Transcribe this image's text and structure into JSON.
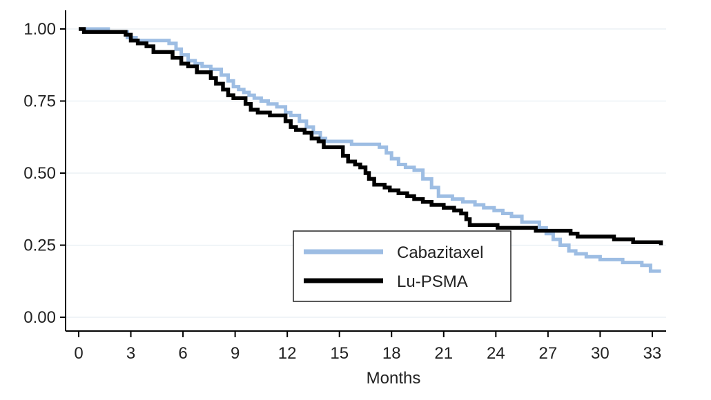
{
  "chart_data": {
    "type": "line",
    "step": true,
    "title": "",
    "xlabel": "Months",
    "ylabel": "",
    "xlim": [
      0,
      33.5
    ],
    "ylim": [
      0,
      1
    ],
    "xticks": [
      "0",
      "3",
      "6",
      "9",
      "12",
      "15",
      "18",
      "21",
      "24",
      "27",
      "30",
      "33"
    ],
    "yticks": [
      "0.00",
      "0.25",
      "0.50",
      "0.75",
      "1.00"
    ],
    "grid": true,
    "legend_position": "lower-center",
    "series": [
      {
        "name": "Cabazitaxel",
        "color": "#9dbde3",
        "x": [
          0,
          1,
          1.7,
          2.8,
          3.3,
          5.2,
          5.6,
          5.9,
          6.3,
          6.7,
          7.1,
          7.6,
          8.2,
          8.6,
          8.9,
          9.2,
          9.5,
          9.8,
          10.1,
          10.5,
          10.9,
          11.4,
          11.9,
          12.2,
          12.7,
          13.1,
          13.5,
          13.9,
          14.2,
          14.8,
          15.7,
          16.5,
          17.3,
          17.7,
          18.0,
          18.4,
          18.8,
          19.3,
          19.8,
          20.3,
          20.7,
          21.5,
          22.1,
          22.8,
          23.3,
          23.9,
          24.4,
          24.9,
          25.5,
          26.5,
          26.9,
          27.3,
          27.7,
          28.2,
          28.6,
          29.2,
          30.0,
          31.3,
          32.4,
          32.9,
          33.5
        ],
        "y": [
          1.0,
          1.0,
          0.99,
          0.97,
          0.96,
          0.95,
          0.93,
          0.91,
          0.89,
          0.88,
          0.87,
          0.86,
          0.84,
          0.82,
          0.8,
          0.79,
          0.78,
          0.77,
          0.76,
          0.75,
          0.74,
          0.73,
          0.71,
          0.7,
          0.68,
          0.66,
          0.64,
          0.62,
          0.61,
          0.61,
          0.6,
          0.6,
          0.59,
          0.57,
          0.55,
          0.53,
          0.52,
          0.51,
          0.48,
          0.45,
          0.42,
          0.41,
          0.4,
          0.39,
          0.38,
          0.37,
          0.36,
          0.35,
          0.33,
          0.31,
          0.29,
          0.27,
          0.25,
          0.23,
          0.22,
          0.21,
          0.2,
          0.19,
          0.18,
          0.16,
          0.16
        ]
      },
      {
        "name": "Lu-PSMA",
        "color": "#000000",
        "x": [
          0,
          0.3,
          2.7,
          3.0,
          3.4,
          3.9,
          4.3,
          5.4,
          5.9,
          6.3,
          6.8,
          7.6,
          7.9,
          8.3,
          8.6,
          8.9,
          9.6,
          9.9,
          10.3,
          11.0,
          11.9,
          12.2,
          12.5,
          13.0,
          13.4,
          13.8,
          14.1,
          15.2,
          15.5,
          15.9,
          16.2,
          16.5,
          16.7,
          17.0,
          17.6,
          17.9,
          18.4,
          18.9,
          19.3,
          19.8,
          20.3,
          21.0,
          21.6,
          22.0,
          22.3,
          22.5,
          24.1,
          25.7,
          26.3,
          28.3,
          28.7,
          30.8,
          31.9,
          33.5
        ],
        "y": [
          1.0,
          0.99,
          0.98,
          0.96,
          0.95,
          0.94,
          0.92,
          0.9,
          0.88,
          0.87,
          0.85,
          0.83,
          0.81,
          0.79,
          0.77,
          0.76,
          0.74,
          0.72,
          0.71,
          0.7,
          0.68,
          0.66,
          0.65,
          0.64,
          0.62,
          0.61,
          0.59,
          0.56,
          0.54,
          0.53,
          0.52,
          0.5,
          0.48,
          0.46,
          0.45,
          0.44,
          0.43,
          0.42,
          0.41,
          0.4,
          0.39,
          0.38,
          0.37,
          0.36,
          0.34,
          0.32,
          0.31,
          0.31,
          0.3,
          0.29,
          0.28,
          0.27,
          0.26,
          0.25
        ]
      }
    ]
  }
}
